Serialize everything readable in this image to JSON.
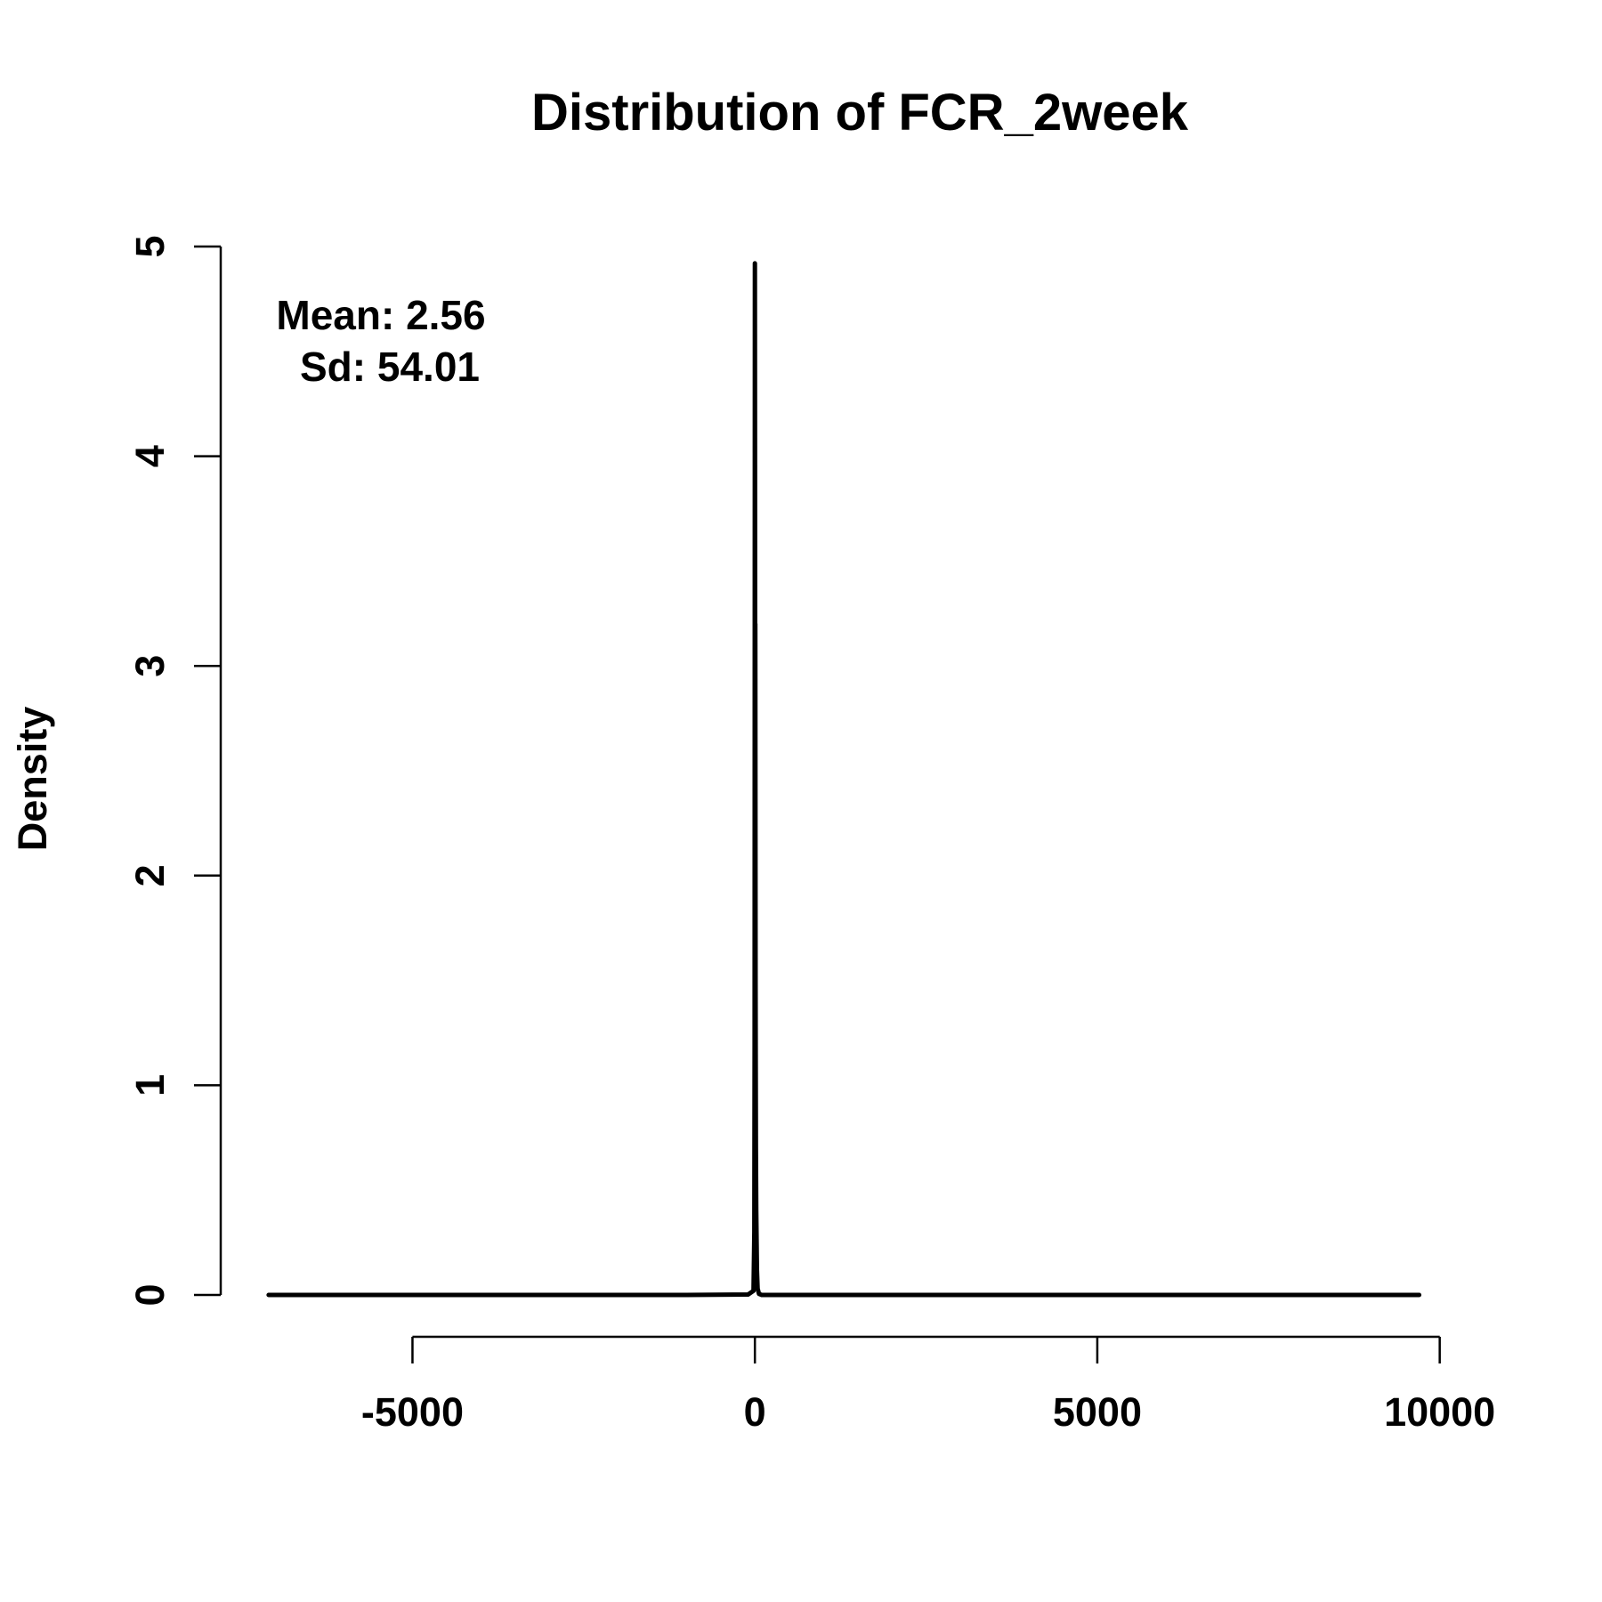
{
  "chart_data": {
    "type": "line",
    "title": "Distribution of FCR_2week",
    "xlabel": "",
    "ylabel": "Density",
    "xlim": [
      -7800,
      11200
    ],
    "ylim": [
      0,
      5
    ],
    "x_ticks": [
      -5000,
      0,
      5000,
      10000
    ],
    "x_tick_labels": [
      "-5000",
      "0",
      "5000",
      "10000"
    ],
    "y_ticks": [
      0,
      1,
      2,
      3,
      4,
      5
    ],
    "y_tick_labels": [
      "0",
      "1",
      "2",
      "3",
      "4",
      "5"
    ],
    "grid": false,
    "legend": "none",
    "annotation": {
      "mean_text": "Mean: 2.56",
      "sd_text": "Sd: 54.01",
      "position": "top-left"
    },
    "series": [
      {
        "color": "#000000",
        "x": [
          -7100,
          -4000,
          -1000,
          -100,
          -20,
          -8,
          -4,
          -2,
          0,
          2,
          4,
          6,
          8,
          10,
          12,
          15,
          20,
          30,
          40,
          60,
          100,
          1000,
          5000,
          9700
        ],
        "y": [
          0,
          0,
          0,
          0.002,
          0.02,
          0.3,
          1.2,
          3.2,
          4.92,
          4.05,
          2.45,
          3.2,
          2.35,
          1.5,
          1.15,
          0.7,
          0.4,
          0.12,
          0.03,
          0.005,
          0,
          0,
          0,
          0
        ]
      }
    ]
  },
  "colors": {
    "line": "#000000",
    "background": "#ffffff"
  }
}
